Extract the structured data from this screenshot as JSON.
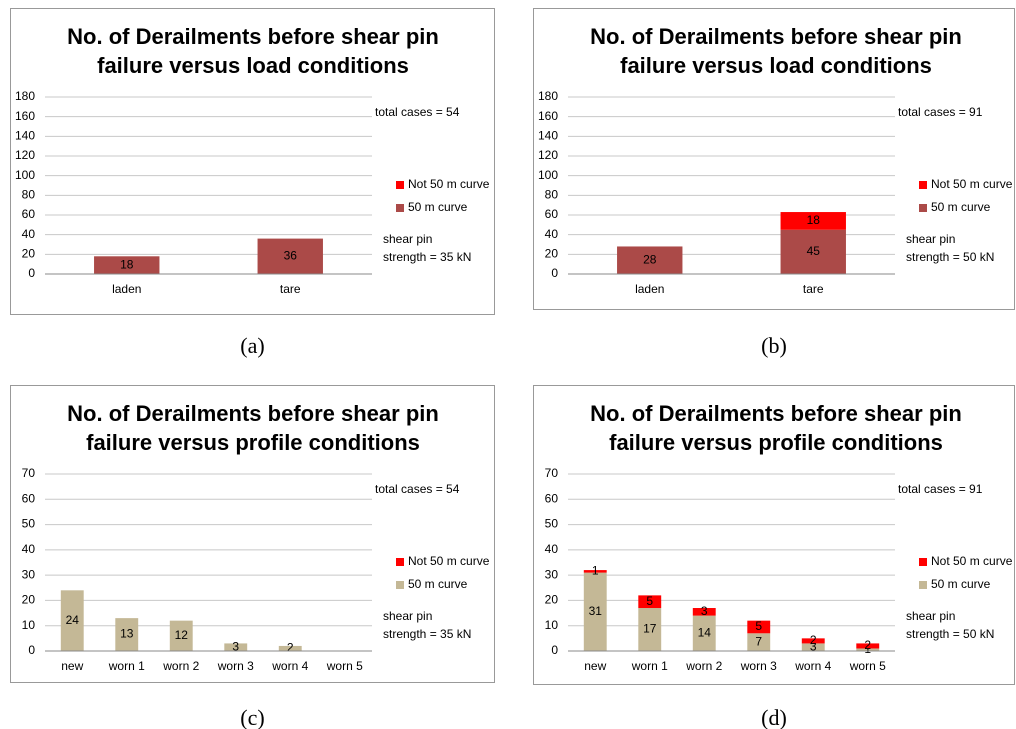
{
  "chart_data": [
    {
      "type": "bar",
      "stacked": true,
      "caption": "(a)",
      "title": [
        "No. of Derailments before shear pin",
        "failure versus load conditions"
      ],
      "annotations": [
        "total cases = 54",
        "shear pin",
        "strength = 35 kN"
      ],
      "categories": [
        "laden",
        "tare"
      ],
      "series": [
        {
          "name": "50 m curve",
          "color": "#ab4a48",
          "values": [
            18,
            36
          ]
        },
        {
          "name": "Not 50 m curve",
          "color": "#ff0000",
          "values": [
            0,
            0
          ]
        }
      ],
      "ylim": [
        0,
        180
      ],
      "yticks": [
        0,
        20,
        40,
        60,
        80,
        100,
        120,
        140,
        160,
        180
      ],
      "grid": true
    },
    {
      "type": "bar",
      "stacked": true,
      "caption": "(b)",
      "title": [
        "No. of Derailments before shear pin",
        "failure versus load conditions"
      ],
      "annotations": [
        "total cases = 91",
        "shear pin",
        "strength = 50 kN"
      ],
      "categories": [
        "laden",
        "tare"
      ],
      "series": [
        {
          "name": "50 m curve",
          "color": "#ab4a48",
          "values": [
            28,
            45
          ]
        },
        {
          "name": "Not 50 m curve",
          "color": "#ff0000",
          "values": [
            0,
            18
          ]
        }
      ],
      "ylim": [
        0,
        180
      ],
      "yticks": [
        0,
        20,
        40,
        60,
        80,
        100,
        120,
        140,
        160,
        180
      ],
      "grid": true
    },
    {
      "type": "bar",
      "stacked": true,
      "caption": "(c)",
      "title": [
        "No. of Derailments before shear pin",
        "failure versus profile conditions"
      ],
      "annotations": [
        "total cases = 54",
        "shear pin",
        "strength = 35 kN"
      ],
      "categories": [
        "new",
        "worn 1",
        "worn 2",
        "worn 3",
        "worn 4",
        "worn 5"
      ],
      "series": [
        {
          "name": "50 m curve",
          "color": "#c4b896",
          "values": [
            24,
            13,
            12,
            3,
            2,
            0
          ]
        },
        {
          "name": "Not 50 m curve",
          "color": "#ff0000",
          "values": [
            0,
            0,
            0,
            0,
            0,
            0
          ]
        }
      ],
      "ylim": [
        0,
        70
      ],
      "yticks": [
        0,
        10,
        20,
        30,
        40,
        50,
        60,
        70
      ],
      "grid": true
    },
    {
      "type": "bar",
      "stacked": true,
      "caption": "(d)",
      "title": [
        "No. of Derailments before shear pin",
        "failure versus profile conditions"
      ],
      "annotations": [
        "total cases = 91",
        "shear pin",
        "strength = 50 kN"
      ],
      "categories": [
        "new",
        "worn 1",
        "worn 2",
        "worn 3",
        "worn 4",
        "worn 5"
      ],
      "series": [
        {
          "name": "50 m curve",
          "color": "#c4b896",
          "values": [
            31,
            17,
            14,
            7,
            3,
            1
          ]
        },
        {
          "name": "Not 50 m curve",
          "color": "#ff0000",
          "values": [
            1,
            5,
            3,
            5,
            2,
            2
          ]
        }
      ],
      "ylim": [
        0,
        70
      ],
      "yticks": [
        0,
        10,
        20,
        30,
        40,
        50,
        60,
        70
      ],
      "grid": true
    }
  ]
}
